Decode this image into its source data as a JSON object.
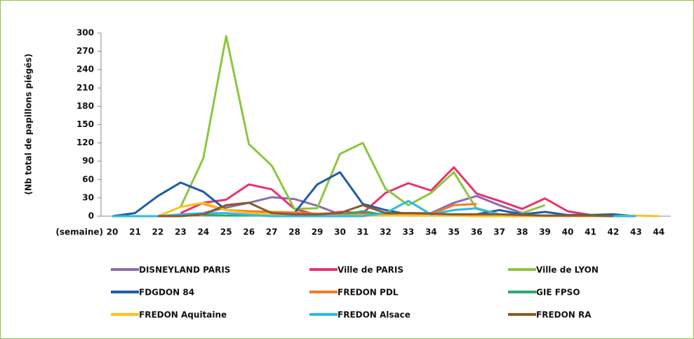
{
  "chart_data": {
    "type": "line",
    "y_label": "(Nb total de papillons piégés)",
    "x_label": "(semaine)",
    "categories": [
      20,
      21,
      22,
      23,
      24,
      25,
      26,
      27,
      28,
      29,
      30,
      31,
      32,
      33,
      34,
      35,
      36,
      37,
      38,
      39,
      40,
      41,
      42,
      43,
      44
    ],
    "ylim": [
      0,
      300
    ],
    "yticks": [
      0,
      30,
      60,
      90,
      120,
      150,
      180,
      210,
      240,
      270,
      300
    ],
    "series": [
      {
        "name": "DISNEYLAND PARIS",
        "color": "#8e6bb0",
        "values": [
          null,
          null,
          null,
          null,
          5,
          14,
          22,
          31,
          28,
          17,
          3,
          5,
          3,
          5,
          5,
          22,
          33,
          18,
          5,
          null,
          null,
          null,
          null,
          null,
          null
        ]
      },
      {
        "name": "Ville de PARIS",
        "color": "#e8336b",
        "values": [
          null,
          null,
          null,
          5,
          22,
          27,
          52,
          44,
          12,
          2,
          7,
          5,
          38,
          54,
          42,
          80,
          37,
          25,
          12,
          29,
          8,
          2,
          null,
          null,
          null
        ]
      },
      {
        "name": "Ville de LYON",
        "color": "#8dc63f",
        "values": [
          null,
          null,
          null,
          15,
          95,
          295,
          118,
          83,
          12,
          13,
          102,
          120,
          45,
          18,
          38,
          72,
          12,
          2,
          5,
          18,
          null,
          null,
          null,
          null,
          null
        ]
      },
      {
        "name": "FDGDON 84",
        "color": "#1f5ca9",
        "values": [
          0,
          5,
          33,
          55,
          40,
          10,
          5,
          3,
          5,
          52,
          72,
          20,
          10,
          3,
          3,
          3,
          3,
          10,
          3,
          7,
          2,
          2,
          3,
          0,
          null
        ]
      },
      {
        "name": "FREDON PDL",
        "color": "#f07d28",
        "values": [
          null,
          null,
          null,
          null,
          20,
          10,
          8,
          7,
          6,
          4,
          5,
          3,
          3,
          2,
          3,
          18,
          20,
          null,
          null,
          null,
          null,
          null,
          null,
          null,
          null
        ]
      },
      {
        "name": "GIE FPSO",
        "color": "#2fa86b",
        "values": [
          null,
          null,
          null,
          null,
          2,
          1,
          1,
          1,
          1,
          1,
          2,
          8,
          2,
          1,
          1,
          1,
          1,
          null,
          null,
          null,
          null,
          null,
          null,
          null,
          null
        ]
      },
      {
        "name": "FREDON Aquitaine",
        "color": "#ffc21c",
        "values": [
          0,
          0,
          0,
          15,
          22,
          10,
          5,
          3,
          2,
          1,
          1,
          1,
          1,
          1,
          1,
          1,
          0,
          0,
          0,
          0,
          0,
          0,
          0,
          1,
          0
        ]
      },
      {
        "name": "FREDON Alsace",
        "color": "#2fb9e6",
        "values": [
          0,
          0,
          0,
          3,
          5,
          5,
          2,
          0,
          0,
          0,
          0,
          0,
          5,
          25,
          3,
          10,
          13,
          3,
          2,
          1,
          1,
          1,
          0,
          0,
          null
        ]
      },
      {
        "name": "FREDON RA",
        "color": "#8b5a2b",
        "values": [
          null,
          null,
          0,
          0,
          3,
          18,
          22,
          5,
          3,
          3,
          5,
          18,
          5,
          5,
          4,
          3,
          3,
          3,
          2,
          1,
          1,
          1,
          0,
          null,
          null
        ]
      }
    ]
  }
}
